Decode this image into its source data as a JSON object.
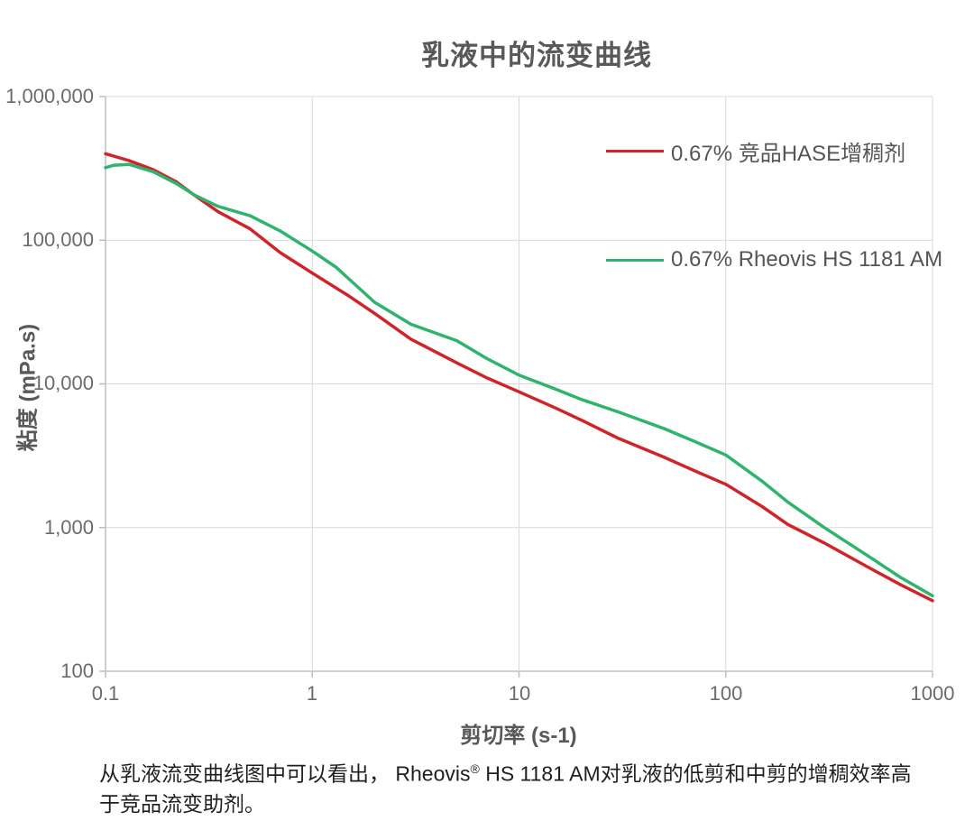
{
  "title": "乳液中的流变曲线",
  "chart_data": {
    "type": "line",
    "title": "乳液中的流变曲线",
    "xlabel": "剪切率 (s-1)",
    "ylabel": "粘度 (mPa.s)",
    "x_scale": "log",
    "y_scale": "log",
    "xlim": [
      0.1,
      1000
    ],
    "ylim": [
      100,
      1000000
    ],
    "grid": true,
    "legend_position": "inside-top-right",
    "x_tick_values": [
      0.1,
      1,
      10,
      100,
      1000
    ],
    "y_tick_values": [
      100,
      1000,
      10000,
      100000,
      1000000
    ],
    "x_ticks": [
      "0.1",
      "1",
      "10",
      "100",
      "1000"
    ],
    "y_ticks": [
      "100",
      "1,000",
      "10,000",
      "100,000",
      "1,000,000"
    ],
    "colors": {
      "grid": "#d9d9d9",
      "axis": "#bfbfbf",
      "tick_text": "#6b6b6b",
      "title_text": "#595959"
    },
    "series": [
      {
        "name": "0.67% 竞品HASE增稠剂",
        "color": "#d0242b",
        "x": [
          0.1,
          0.13,
          0.17,
          0.22,
          0.27,
          0.35,
          0.5,
          0.7,
          1,
          1.5,
          2,
          3,
          5,
          7,
          10,
          15,
          20,
          30,
          50,
          70,
          100,
          150,
          200,
          300,
          500,
          700,
          1000
        ],
        "y": [
          400000,
          358000,
          310000,
          255000,
          205000,
          158000,
          120000,
          82000,
          59000,
          41000,
          31000,
          20500,
          14000,
          11000,
          8800,
          6800,
          5600,
          4200,
          3100,
          2500,
          2000,
          1400,
          1050,
          780,
          520,
          400,
          310
        ]
      },
      {
        "name": "0.67% Rheovis HS 1181 AM",
        "color": "#2fb36d",
        "x": [
          0.1,
          0.11,
          0.13,
          0.17,
          0.22,
          0.27,
          0.35,
          0.5,
          0.7,
          1,
          1.3,
          2,
          3,
          5,
          7,
          10,
          15,
          20,
          30,
          50,
          70,
          100,
          150,
          200,
          300,
          500,
          700,
          1000
        ],
        "y": [
          320000,
          333000,
          337000,
          300000,
          248000,
          206000,
          172000,
          148000,
          116000,
          84000,
          65000,
          37000,
          26000,
          20000,
          15000,
          11500,
          9200,
          7800,
          6400,
          4900,
          4000,
          3200,
          2100,
          1500,
          1000,
          620,
          450,
          335
        ]
      }
    ]
  },
  "legend": {
    "item1": "0.67% 竞品HASE增稠剂",
    "item2": "0.67% Rheovis HS 1181 AM"
  },
  "caption": {
    "part1": "从乳液流变曲线图中可以看出， Rheovis",
    "sup": "®",
    "part2": " HS 1181 AM对乳液的低剪和中剪的增稠效率高于竞品流变助剂。"
  }
}
